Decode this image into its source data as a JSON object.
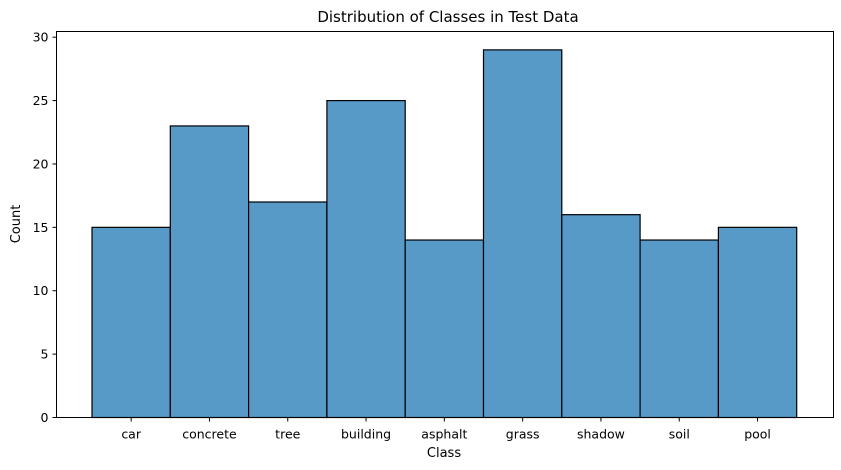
{
  "chart_data": {
    "type": "bar",
    "title": "Distribution of Classes in Test Data",
    "xlabel": "Class",
    "ylabel": "Count",
    "categories": [
      "car",
      "concrete",
      "tree",
      "building",
      "asphalt",
      "grass",
      "shadow",
      "soil",
      "pool"
    ],
    "values": [
      15,
      23,
      17,
      25,
      14,
      29,
      16,
      14,
      15
    ],
    "yticks": [
      0,
      5,
      10,
      15,
      20,
      25,
      30
    ],
    "ylim": [
      0,
      30.45
    ],
    "grid": false,
    "bar_color": "#5799c7",
    "edge_color": "#000000"
  }
}
